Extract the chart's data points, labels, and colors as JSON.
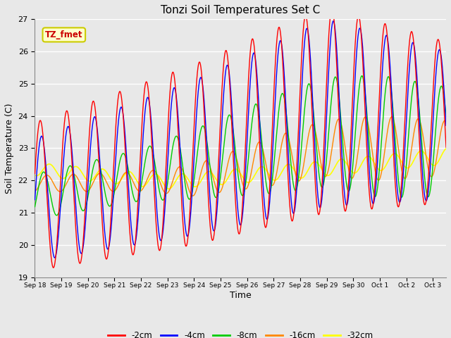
{
  "title": "Tonzi Soil Temperatures Set C",
  "xlabel": "Time",
  "ylabel": "Soil Temperature (C)",
  "ylim": [
    19.0,
    27.0
  ],
  "yticks": [
    19.0,
    20.0,
    21.0,
    22.0,
    23.0,
    24.0,
    25.0,
    26.0,
    27.0
  ],
  "xtick_labels": [
    "Sep 18",
    "Sep 19",
    "Sep 20",
    "Sep 21",
    "Sep 22",
    "Sep 23",
    "Sep 24",
    "Sep 25",
    "Sep 26",
    "Sep 27",
    "Sep 28",
    "Sep 29",
    "Sep 30",
    "Oct 1",
    "Oct 2",
    "Oct 3"
  ],
  "background_color": "#e8e8e8",
  "plot_bg_color": "#e8e8e8",
  "grid_color": "#ffffff",
  "colors": {
    "-2cm": "#ff0000",
    "-4cm": "#0000ff",
    "-8cm": "#00cc00",
    "-16cm": "#ff8800",
    "-32cm": "#ffff00"
  },
  "legend_labels": [
    "-2cm",
    "-4cm",
    "-8cm",
    "-16cm",
    "-32cm"
  ],
  "annotation_text": "TZ_fmet",
  "annotation_color": "#cc0000",
  "annotation_bg": "#ffffcc",
  "annotation_border": "#cccc00",
  "n_days": 15.5,
  "samples_per_day": 240
}
